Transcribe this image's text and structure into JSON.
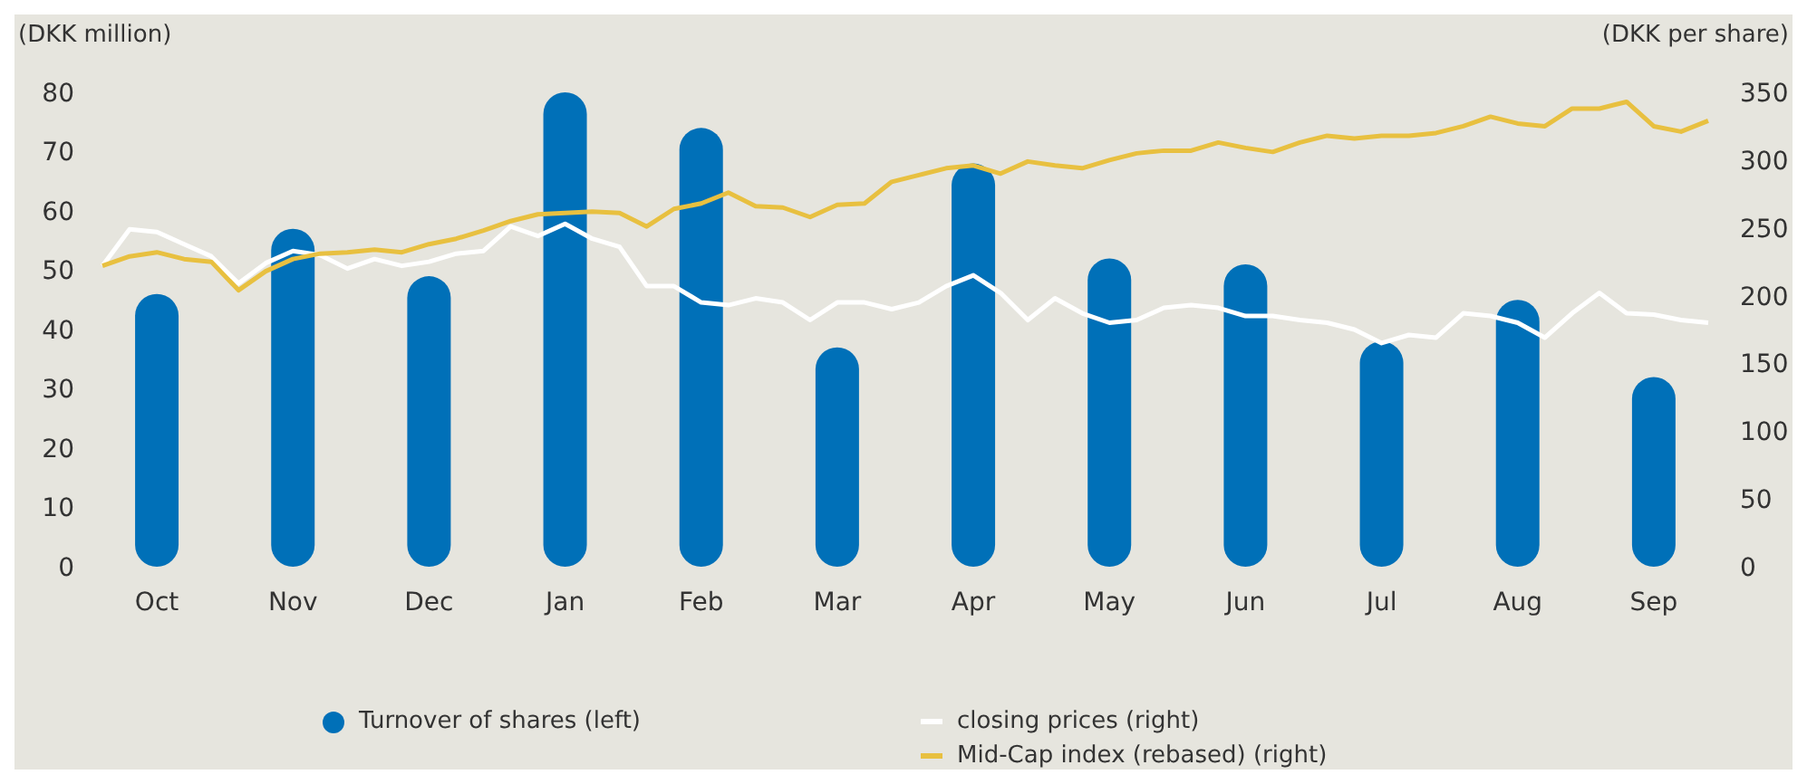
{
  "chart_data": {
    "type": "bar",
    "ylabel": "(DKK million)",
    "y2label": "(DKK per share)",
    "categories": [
      null,
      null,
      "Oct",
      null,
      null,
      null,
      null,
      "Nov",
      null,
      null,
      null,
      null,
      "Dec",
      null,
      null,
      null,
      null,
      "Jan",
      null,
      null,
      null,
      null,
      "Feb",
      null,
      null,
      null,
      null,
      "Mar",
      null,
      null,
      null,
      null,
      "Apr",
      null,
      null,
      null,
      null,
      "May",
      null,
      null,
      null,
      null,
      "Jun",
      null,
      null,
      null,
      null,
      "Jul",
      null,
      null,
      null,
      null,
      "Aug",
      null,
      null,
      null,
      null,
      "Sep",
      null,
      null
    ],
    "ylim": [
      0,
      80
    ],
    "yticks": [
      0,
      10,
      20,
      30,
      40,
      50,
      60,
      70,
      80
    ],
    "y2lim": [
      0,
      350
    ],
    "y2ticks": [
      0,
      50,
      100,
      150,
      200,
      250,
      300,
      350
    ],
    "legend": "bottom",
    "series": [
      {
        "name": "Turnover of shares (left)",
        "color": "#0070b8",
        "values": [
          null,
          null,
          46,
          null,
          null,
          null,
          null,
          57,
          null,
          null,
          null,
          null,
          49,
          null,
          null,
          null,
          null,
          80,
          null,
          null,
          null,
          null,
          74,
          null,
          null,
          null,
          null,
          37,
          null,
          null,
          null,
          null,
          68,
          null,
          null,
          null,
          null,
          52,
          null,
          null,
          null,
          null,
          51,
          null,
          null,
          null,
          null,
          38,
          null,
          null,
          null,
          null,
          45,
          null,
          null,
          null,
          null,
          32,
          null,
          null
        ]
      },
      {
        "name": "closing prices (right)",
        "type": "line",
        "axis": "y2",
        "color": "#ffffff",
        "values": [
          222,
          249,
          247,
          238,
          229,
          209,
          224,
          233,
          230,
          220,
          227,
          222,
          225,
          231,
          233,
          251,
          244,
          253,
          242,
          236,
          207,
          207,
          195,
          193,
          198,
          195,
          182,
          195,
          195,
          190,
          195,
          207,
          215,
          202,
          182,
          198,
          187,
          180,
          182,
          191,
          193,
          191,
          185,
          185,
          182,
          180,
          175,
          165,
          171,
          169,
          187,
          185,
          180,
          169,
          187,
          202,
          187,
          186,
          182,
          180
        ]
      },
      {
        "name": "Mid-Cap index (rebased) (right)",
        "type": "line",
        "axis": "y2",
        "color": "#e8c040",
        "values": [
          222,
          229,
          232,
          227,
          225,
          204,
          218,
          227,
          231,
          232,
          234,
          232,
          238,
          242,
          248,
          255,
          260,
          261,
          262,
          261,
          251,
          264,
          268,
          276,
          266,
          265,
          258,
          267,
          268,
          284,
          289,
          294,
          296,
          290,
          299,
          296,
          294,
          300,
          305,
          307,
          307,
          313,
          309,
          306,
          313,
          318,
          316,
          318,
          318,
          320,
          325,
          332,
          327,
          325,
          338,
          338,
          343,
          325,
          321,
          329
        ]
      }
    ]
  }
}
